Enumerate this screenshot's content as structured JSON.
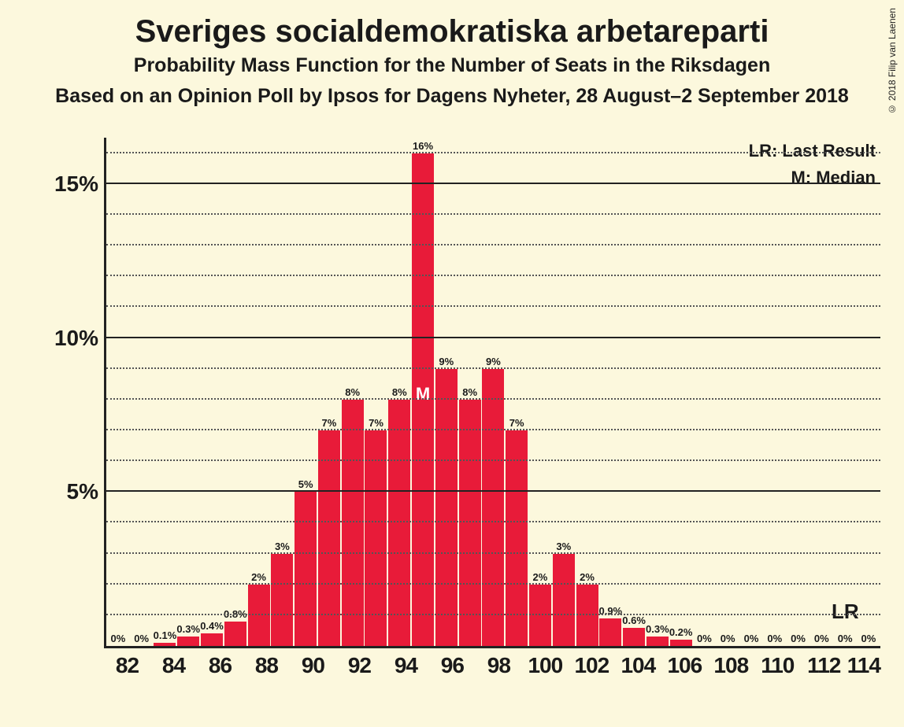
{
  "copyright": "© 2018 Filip van Laenen",
  "title": "Sveriges socialdemokratiska arbetareparti",
  "subtitle1": "Probability Mass Function for the Number of Seats in the Riksdagen",
  "subtitle2": "Based on an Opinion Poll by Ipsos for Dagens Nyheter, 28 August–2 September 2018",
  "legend": {
    "lr": "LR: Last Result",
    "m": "M: Median"
  },
  "lr_label": "LR",
  "median_label": "M",
  "chart": {
    "type": "bar",
    "bar_color": "#e81b39",
    "background_color": "#fcf8dd",
    "axis_color": "#222222",
    "grid_major_color": "#222222",
    "grid_minor_color": "#555555",
    "data_label_fontsize": 13,
    "xtick_fontsize": 28,
    "ytick_fontsize": 28,
    "ylim": [
      0,
      16.5
    ],
    "y_major_ticks": [
      5,
      10,
      15
    ],
    "y_minor_step": 1,
    "x_start": 82,
    "x_end": 114,
    "x_tick_step": 2,
    "median_x": 95,
    "lr_x": 113,
    "bars": [
      {
        "x": 82,
        "v": 0,
        "label": "0%"
      },
      {
        "x": 83,
        "v": 0,
        "label": "0%"
      },
      {
        "x": 84,
        "v": 0.1,
        "label": "0.1%"
      },
      {
        "x": 85,
        "v": 0.3,
        "label": "0.3%"
      },
      {
        "x": 86,
        "v": 0.4,
        "label": "0.4%"
      },
      {
        "x": 87,
        "v": 0.8,
        "label": "0.8%"
      },
      {
        "x": 88,
        "v": 2,
        "label": "2%"
      },
      {
        "x": 89,
        "v": 3,
        "label": "3%"
      },
      {
        "x": 90,
        "v": 5,
        "label": "5%"
      },
      {
        "x": 91,
        "v": 7,
        "label": "7%"
      },
      {
        "x": 92,
        "v": 8,
        "label": "8%"
      },
      {
        "x": 93,
        "v": 7,
        "label": "7%"
      },
      {
        "x": 94,
        "v": 8,
        "label": "8%"
      },
      {
        "x": 95,
        "v": 16,
        "label": "16%"
      },
      {
        "x": 96,
        "v": 9,
        "label": "9%"
      },
      {
        "x": 97,
        "v": 8,
        "label": "8%"
      },
      {
        "x": 98,
        "v": 9,
        "label": "9%"
      },
      {
        "x": 99,
        "v": 7,
        "label": "7%"
      },
      {
        "x": 100,
        "v": 2,
        "label": "2%"
      },
      {
        "x": 101,
        "v": 3,
        "label": "3%"
      },
      {
        "x": 102,
        "v": 2,
        "label": "2%"
      },
      {
        "x": 103,
        "v": 0.9,
        "label": "0.9%"
      },
      {
        "x": 104,
        "v": 0.6,
        "label": "0.6%"
      },
      {
        "x": 105,
        "v": 0.3,
        "label": "0.3%"
      },
      {
        "x": 106,
        "v": 0.2,
        "label": "0.2%"
      },
      {
        "x": 107,
        "v": 0,
        "label": "0%"
      },
      {
        "x": 108,
        "v": 0,
        "label": "0%"
      },
      {
        "x": 109,
        "v": 0,
        "label": "0%"
      },
      {
        "x": 110,
        "v": 0,
        "label": "0%"
      },
      {
        "x": 111,
        "v": 0,
        "label": "0%"
      },
      {
        "x": 112,
        "v": 0,
        "label": "0%"
      },
      {
        "x": 113,
        "v": 0,
        "label": "0%"
      },
      {
        "x": 114,
        "v": 0,
        "label": "0%"
      }
    ]
  }
}
